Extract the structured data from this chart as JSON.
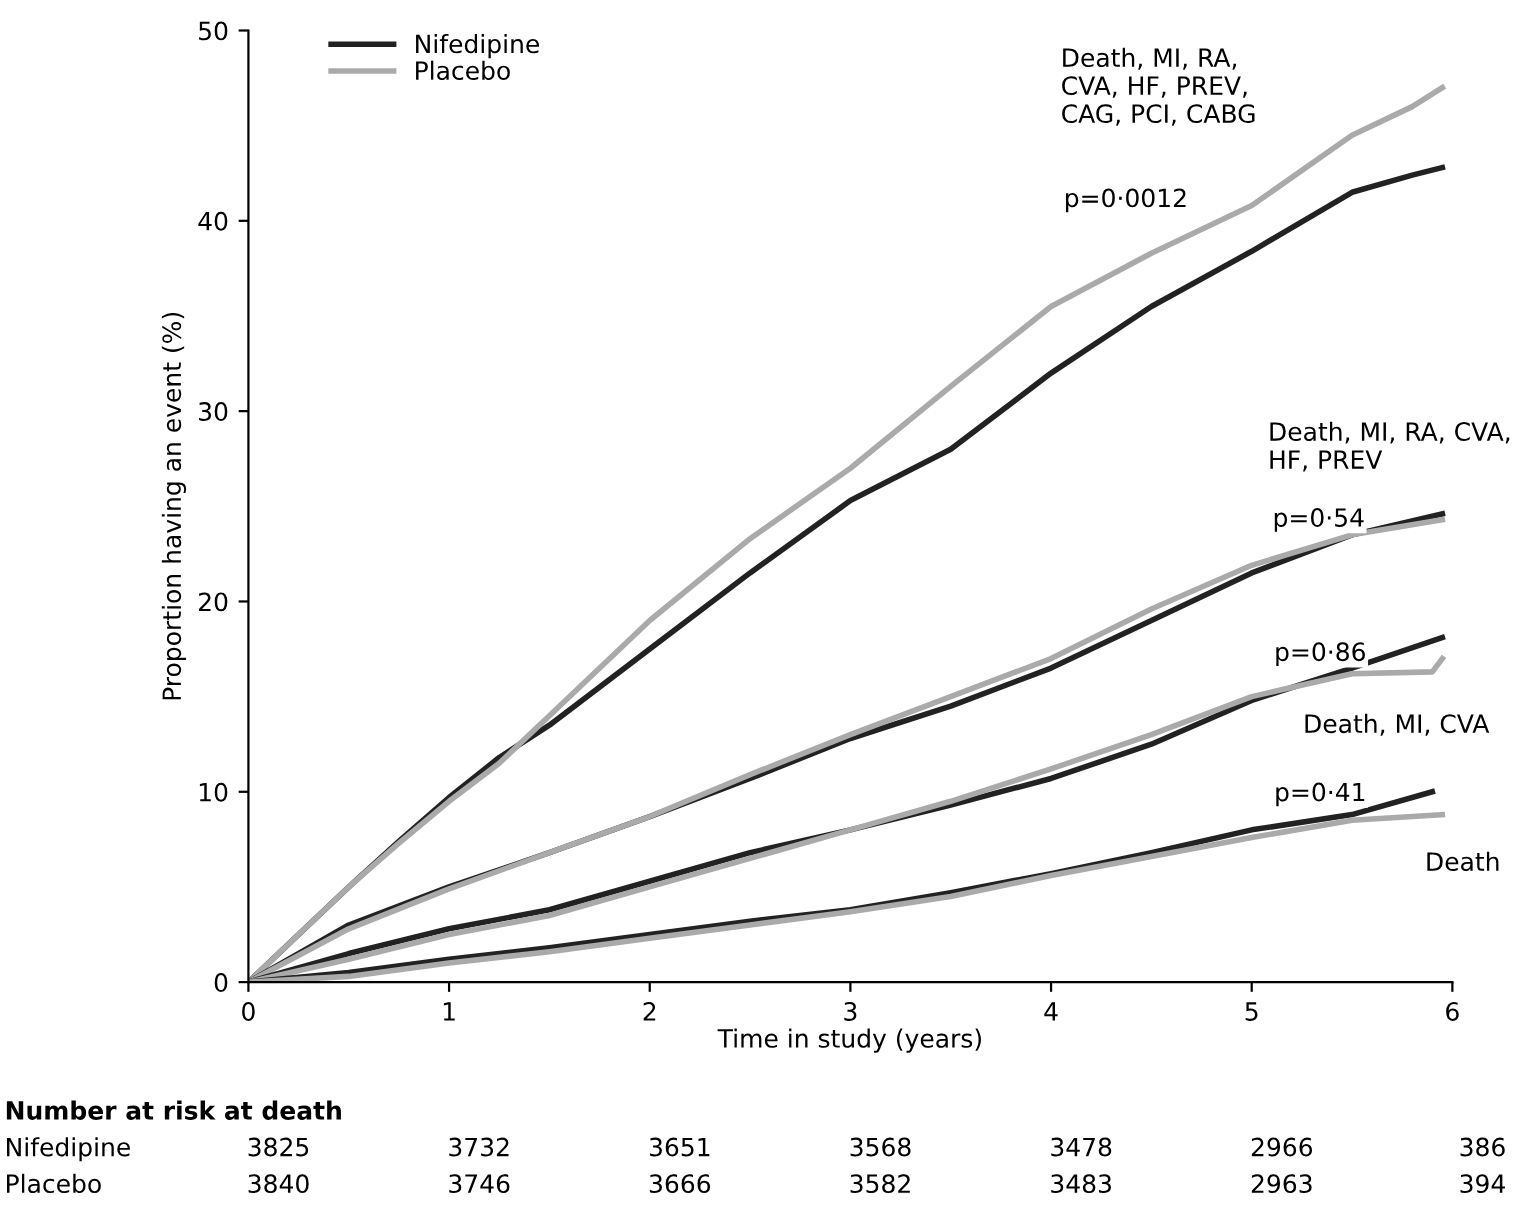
{
  "chart_data": {
    "type": "line",
    "xlabel": "Time in study (years)",
    "ylabel": "Proportion having an event (%)",
    "xlim": [
      0,
      6
    ],
    "ylim": [
      0,
      50
    ],
    "xticks": [
      0,
      1,
      2,
      3,
      4,
      5,
      6
    ],
    "yticks": [
      0,
      10,
      20,
      30,
      40,
      50
    ],
    "grid": false,
    "legend": "top left",
    "marker": "none",
    "line_style": "solid",
    "series": [
      {
        "name": "Nifedipine",
        "color": "#222222",
        "x": [
          0,
          0.25,
          0.5,
          0.75,
          1,
          1.25,
          1.5,
          2,
          2.5,
          3,
          3.5,
          4,
          4.5,
          5,
          5.5,
          5.8,
          5.95
        ],
        "values": [
          0,
          2.5,
          5,
          7.4,
          9.7,
          11.8,
          13.5,
          17.5,
          21.5,
          25.3,
          28,
          32,
          35.5,
          38.4,
          41.5,
          42.4,
          42.8
        ]
      },
      {
        "name": "Placebo",
        "color": "#aaaaaa",
        "x": [
          0,
          0.25,
          0.5,
          0.75,
          1,
          1.25,
          1.5,
          2,
          2.5,
          3,
          3.5,
          4,
          4.5,
          5,
          5.5,
          5.8,
          5.95
        ],
        "values": [
          0,
          2.5,
          5,
          7.3,
          9.5,
          11.5,
          14,
          19,
          23.3,
          27,
          31.3,
          35.5,
          38.3,
          40.8,
          44.5,
          46,
          47
        ]
      },
      {
        "color": "#222222",
        "x": [
          0,
          0.5,
          1,
          1.5,
          2,
          2.5,
          3,
          3.5,
          4,
          4.5,
          5,
          5.5,
          5.95
        ],
        "values": [
          0,
          3,
          5,
          6.8,
          8.7,
          10.7,
          12.8,
          14.5,
          16.5,
          19,
          21.5,
          23.5,
          24.6
        ]
      },
      {
        "color": "#aaaaaa",
        "x": [
          0,
          0.5,
          1,
          1.5,
          2,
          2.5,
          3,
          3.5,
          4,
          4.5,
          5,
          5.5,
          5.95
        ],
        "values": [
          0,
          2.8,
          4.9,
          6.8,
          8.7,
          10.9,
          13,
          15,
          17,
          19.6,
          21.9,
          23.5,
          24.3
        ]
      },
      {
        "color": "#222222",
        "x": [
          0,
          0.5,
          1,
          1.5,
          2,
          2.5,
          3,
          3.5,
          4,
          4.5,
          5,
          5.5,
          5.95
        ],
        "values": [
          0,
          1.5,
          2.8,
          3.8,
          5.3,
          6.8,
          8,
          9.3,
          10.7,
          12.5,
          14.8,
          16.5,
          18.1
        ]
      },
      {
        "color": "#aaaaaa",
        "x": [
          0,
          0.5,
          1,
          1.5,
          2,
          2.5,
          3,
          3.5,
          4,
          4.5,
          5,
          5.5,
          5.9,
          5.95
        ],
        "values": [
          0,
          1.2,
          2.5,
          3.5,
          5,
          6.5,
          8,
          9.5,
          11.2,
          13,
          15,
          16.2,
          16.3,
          17
        ]
      },
      {
        "color": "#222222",
        "x": [
          0,
          0.5,
          1,
          1.5,
          2,
          2.5,
          3,
          3.5,
          4,
          4.5,
          5,
          5.5,
          5.9
        ],
        "values": [
          0,
          0.5,
          1.2,
          1.8,
          2.5,
          3.2,
          3.8,
          4.7,
          5.7,
          6.8,
          8,
          8.8,
          10
        ]
      },
      {
        "color": "#aaaaaa",
        "x": [
          0,
          0.5,
          1,
          1.5,
          2,
          2.5,
          3,
          3.5,
          4,
          4.5,
          5,
          5.5,
          5.95
        ],
        "values": [
          0,
          0.3,
          1,
          1.6,
          2.3,
          3,
          3.7,
          4.5,
          5.6,
          6.6,
          7.6,
          8.5,
          8.8
        ]
      }
    ],
    "annotations": [
      "Death, MI, RA,\nCVA, HF, PREV,\nCAG, PCI, CABG",
      "p=0·0012",
      "Death, MI, RA, CVA,\nHF, PREV",
      "p=0·54",
      "p=0·86",
      "Death, MI, CVA",
      "p=0·41",
      "Death",
      "Number at risk at death",
      "Nifedipine 3825 3732 3651 3568 3478 2966 386",
      "Placebo 3840 3746 3666 3582 3483 2963 394"
    ]
  }
}
